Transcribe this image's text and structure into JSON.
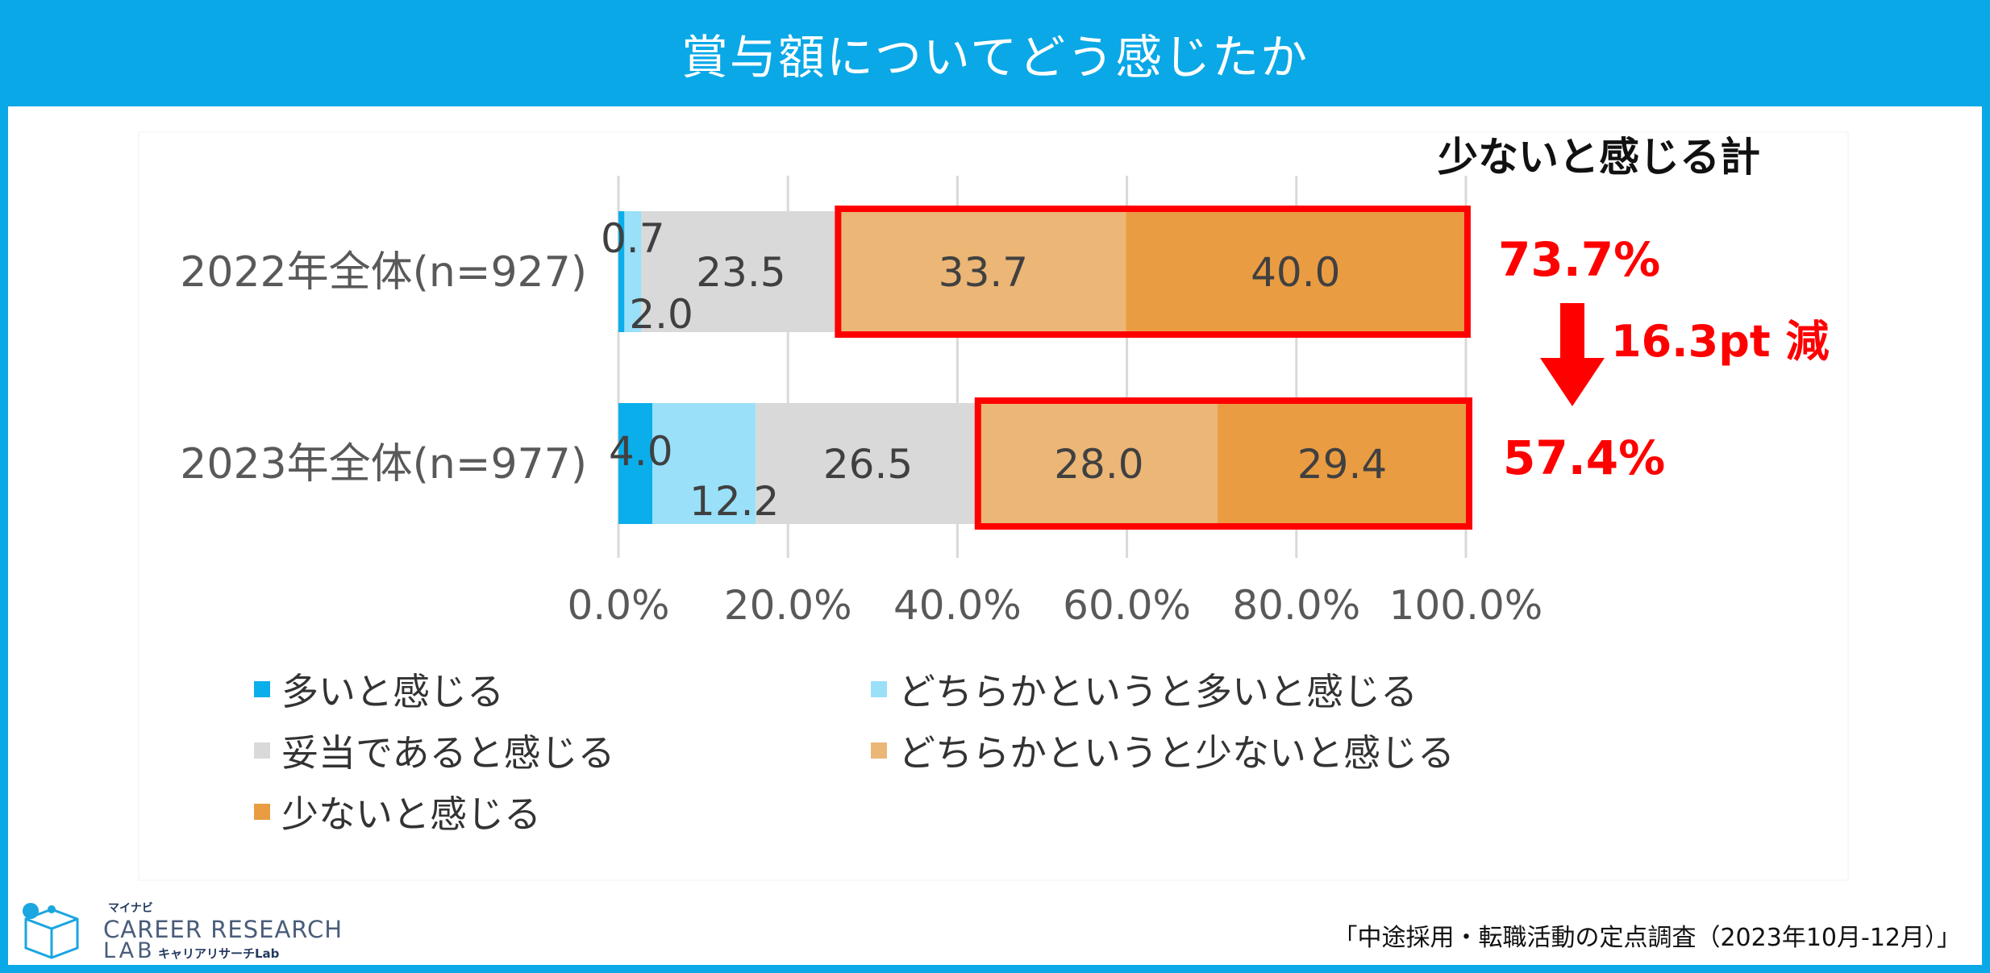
{
  "header": {
    "title": "賞与額についてどう感じたか"
  },
  "chart_data": {
    "type": "bar",
    "orientation": "horizontal",
    "stacked": true,
    "categories": [
      "2022年全体(n=927)",
      "2023年全体(n=977)"
    ],
    "series": [
      {
        "name": "多いと感じる",
        "values": [
          0.7,
          4.0
        ],
        "color": "#0aaeea"
      },
      {
        "name": "どちらかというと多いと感じる",
        "values": [
          2.0,
          12.2
        ],
        "color": "#99e0f8"
      },
      {
        "name": "妥当であると感じる",
        "values": [
          23.5,
          26.5
        ],
        "color": "#d9d9d9"
      },
      {
        "name": "どちらかというと少ないと感じる",
        "values": [
          33.7,
          28.0
        ],
        "color": "#ebb676"
      },
      {
        "name": "少ないと感じる",
        "values": [
          40.0,
          29.4
        ],
        "color": "#e99c42"
      }
    ],
    "value_labels": [
      [
        "0.7",
        "2.0",
        "23.5",
        "33.7",
        "40.0"
      ],
      [
        "4.0",
        "12.2",
        "26.5",
        "28.0",
        "29.4"
      ]
    ],
    "xlim": [
      0,
      100
    ],
    "x_ticks": [
      "0.0%",
      "20.0%",
      "40.0%",
      "60.0%",
      "80.0%",
      "100.0%"
    ],
    "grid": true,
    "legend_position": "bottom",
    "annotation": {
      "header": "少ないと感じる計",
      "totals": [
        "73.7%",
        "57.4%"
      ],
      "change": "16.3pt 減",
      "highlight_color": "#ff0000"
    }
  },
  "footer": {
    "logo_small": "マイナビ",
    "logo_main": "CAREER RESEARCH",
    "logo_lab": "LAB",
    "logo_sub": "キャリアリサーチLab",
    "source": "「中途採用・転職活動の定点調査（2023年10月-12月）」"
  }
}
